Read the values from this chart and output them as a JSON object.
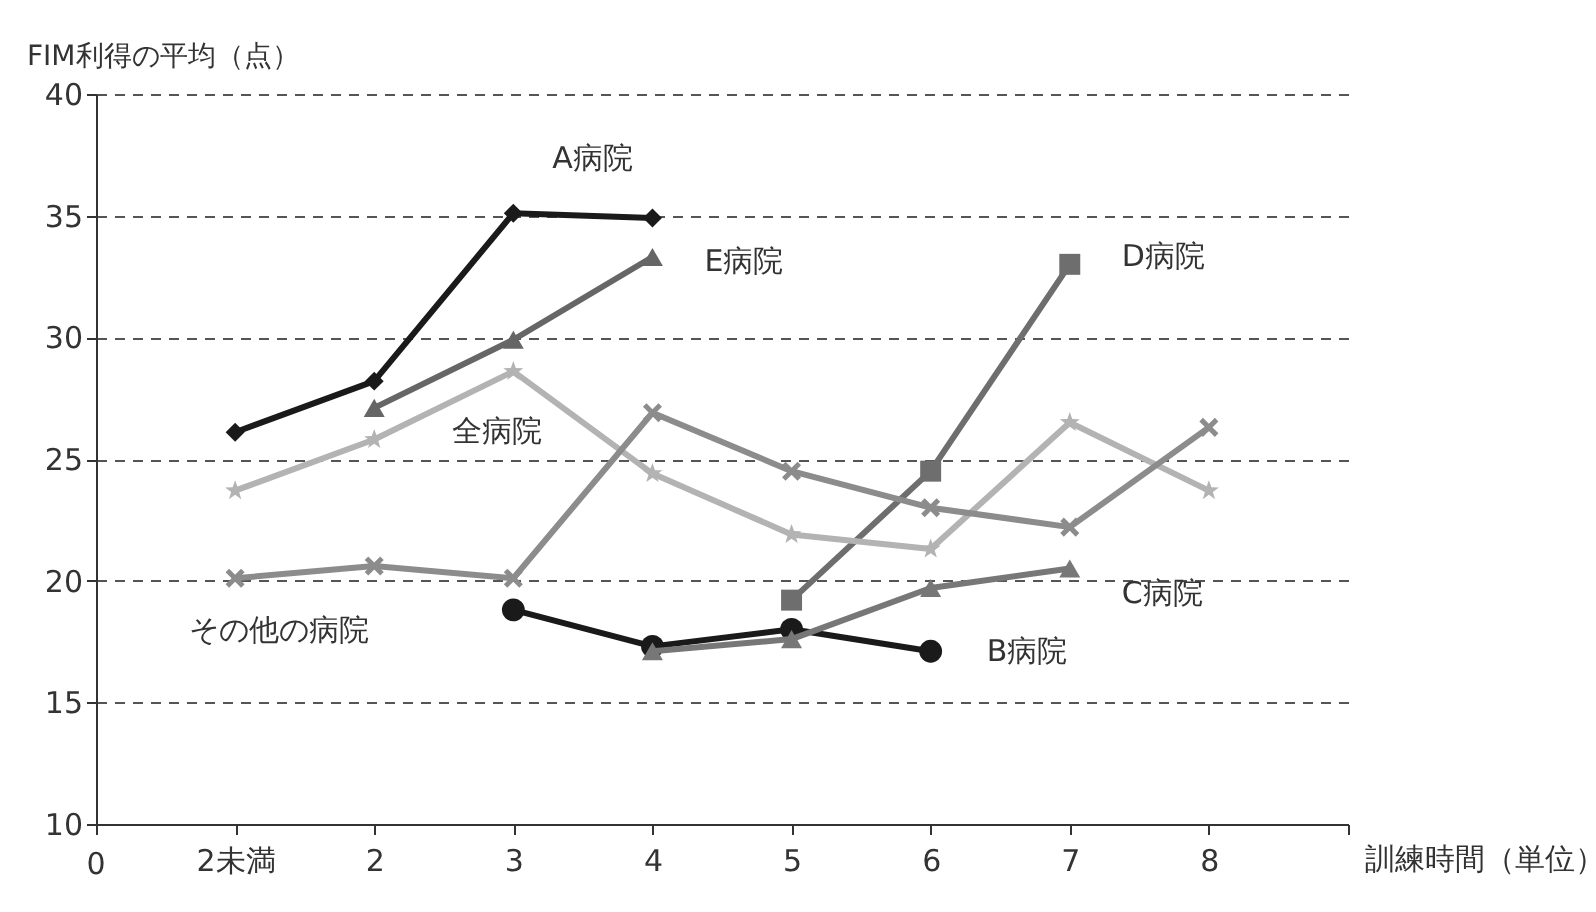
{
  "chart_data": {
    "type": "line",
    "xlabel": "訓練時間（単位）",
    "ylabel": "FIM利得の平均（点）",
    "categories": [
      "2未満",
      "2",
      "3",
      "4",
      "5",
      "6",
      "7",
      "8"
    ],
    "annotations": [
      "0"
    ],
    "ylim": [
      10,
      40
    ],
    "yticks": [
      10,
      15,
      20,
      25,
      30,
      35,
      40
    ],
    "grid": "y",
    "line_style": "solid",
    "series": [
      {
        "name": "A病院",
        "color": "#1a1a1a",
        "marker": "diamond",
        "values": [
          26.1,
          28.2,
          35.1,
          34.9,
          null,
          null,
          null,
          null
        ]
      },
      {
        "name": "B病院",
        "color": "#1a1a1a",
        "marker": "circle",
        "values": [
          null,
          null,
          18.8,
          17.3,
          18.0,
          17.1,
          null,
          null
        ]
      },
      {
        "name": "C病院",
        "color": "#777777",
        "marker": "triangle",
        "values": [
          null,
          null,
          null,
          17.1,
          17.6,
          19.7,
          20.5,
          null
        ]
      },
      {
        "name": "D病院",
        "color": "#6e6e6e",
        "marker": "square",
        "values": [
          null,
          null,
          null,
          null,
          19.2,
          24.5,
          33.0,
          null
        ]
      },
      {
        "name": "E病院",
        "color": "#666666",
        "marker": "triangle",
        "values": [
          null,
          27.1,
          29.9,
          33.3,
          null,
          null,
          null,
          null
        ]
      },
      {
        "name": "全病院",
        "color": "#b3b3b3",
        "marker": "star",
        "values": [
          23.7,
          25.8,
          28.6,
          24.4,
          21.9,
          21.3,
          26.5,
          23.7
        ]
      },
      {
        "name": "その他の病院",
        "color": "#8c8c8c",
        "marker": "cross",
        "values": [
          20.1,
          20.6,
          20.1,
          26.9,
          24.5,
          23.0,
          22.2,
          26.3
        ]
      }
    ]
  }
}
